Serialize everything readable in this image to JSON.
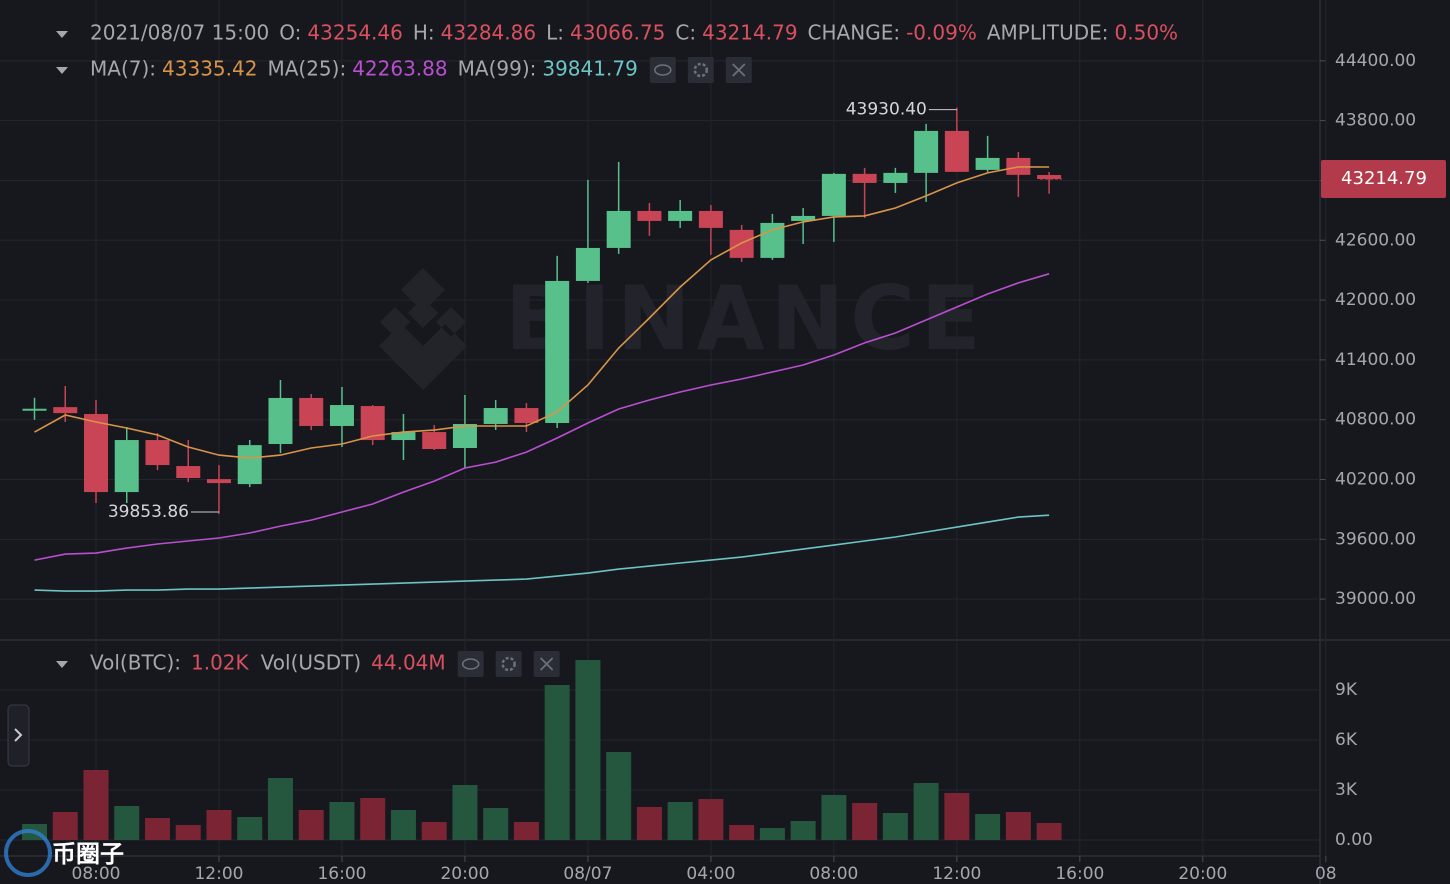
{
  "chart_data": {
    "type": "candlestick",
    "header": {
      "datetime": "2021/08/07 15:00",
      "readouts": [
        {
          "label": "O:",
          "value": "43254.46"
        },
        {
          "label": "H:",
          "value": "43284.86"
        },
        {
          "label": "L:",
          "value": "43066.75"
        },
        {
          "label": "C:",
          "value": "43214.79"
        },
        {
          "label": "CHANGE:",
          "value": "-0.09%"
        },
        {
          "label": "AMPLITUDE:",
          "value": "0.50%"
        }
      ]
    },
    "x": [
      "2021/08/06 06:00",
      "2021/08/06 07:00",
      "2021/08/06 08:00",
      "2021/08/06 09:00",
      "2021/08/06 10:00",
      "2021/08/06 11:00",
      "2021/08/06 12:00",
      "2021/08/06 13:00",
      "2021/08/06 14:00",
      "2021/08/06 15:00",
      "2021/08/06 16:00",
      "2021/08/06 17:00",
      "2021/08/06 18:00",
      "2021/08/06 19:00",
      "2021/08/06 20:00",
      "2021/08/06 21:00",
      "2021/08/06 22:00",
      "2021/08/06 23:00",
      "2021/08/07 00:00",
      "2021/08/07 01:00",
      "2021/08/07 02:00",
      "2021/08/07 03:00",
      "2021/08/07 04:00",
      "2021/08/07 05:00",
      "2021/08/07 06:00",
      "2021/08/07 07:00",
      "2021/08/07 08:00",
      "2021/08/07 09:00",
      "2021/08/07 10:00",
      "2021/08/07 11:00",
      "2021/08/07 12:00",
      "2021/08/07 13:00",
      "2021/08/07 14:00",
      "2021/08/07 15:00"
    ],
    "open": [
      40890,
      40926,
      40857,
      40074,
      40596,
      40335,
      40204,
      40154,
      40556,
      41018,
      40737,
      40937,
      40596,
      40676,
      40516,
      40757,
      40917,
      40767,
      42192,
      42523,
      42894,
      42794,
      42894,
      42704,
      42423,
      42794,
      42844,
      43266,
      43175,
      43276,
      43697,
      43306,
      43426,
      43254.46
    ],
    "high": [
      41020,
      41138,
      40998,
      40726,
      40666,
      40596,
      40345,
      40596,
      41198,
      41058,
      41128,
      40947,
      40857,
      40746,
      41048,
      40998,
      40967,
      42443,
      43206,
      43386,
      42974,
      43004,
      42954,
      42754,
      42864,
      42924,
      43276,
      43326,
      43326,
      43768,
      43930.4,
      43647,
      43486,
      43284.86
    ],
    "low": [
      40800,
      40777,
      39964,
      39964,
      40295,
      40174,
      39853.86,
      40124,
      40465,
      40696,
      40526,
      40546,
      40395,
      40496,
      40315,
      40697,
      40677,
      40717,
      42172,
      42463,
      42644,
      42724,
      42453,
      42383,
      42403,
      42563,
      42583,
      42824,
      43075,
      42985,
      43286,
      43286,
      43035,
      43066.75
    ],
    "close": [
      40910,
      40866,
      40074,
      40596,
      40345,
      40215,
      40164,
      40545,
      41018,
      40737,
      40947,
      40596,
      40676,
      40506,
      40757,
      40917,
      40767,
      42192,
      42523,
      42894,
      42794,
      42894,
      42724,
      42423,
      42774,
      42844,
      43266,
      43175,
      43276,
      43697,
      43286,
      43426,
      43256,
      43214.79
    ],
    "ylim": [
      38590,
      44930
    ],
    "yticks": [
      {
        "value": 39000,
        "label": "39000.00"
      },
      {
        "value": 39600,
        "label": "39600.00"
      },
      {
        "value": 40200,
        "label": "40200.00"
      },
      {
        "value": 40800,
        "label": "40800.00"
      },
      {
        "value": 41400,
        "label": "41400.00"
      },
      {
        "value": 42000,
        "label": "42000.00"
      },
      {
        "value": 42600,
        "label": "42600.00"
      },
      {
        "value": 43200,
        "label": "43200.00"
      },
      {
        "value": 43800,
        "label": "43800.00"
      },
      {
        "value": 44400,
        "label": "44400.00"
      }
    ],
    "xticks": [
      {
        "value": "2021/08/06 08:00",
        "label": "08:00"
      },
      {
        "value": "2021/08/06 12:00",
        "label": "12:00"
      },
      {
        "value": "2021/08/06 16:00",
        "label": "16:00"
      },
      {
        "value": "2021/08/06 20:00",
        "label": "20:00"
      },
      {
        "value": "2021/08/07 00:00",
        "label": "08/07"
      },
      {
        "value": "2021/08/07 04:00",
        "label": "04:00"
      },
      {
        "value": "2021/08/07 08:00",
        "label": "08:00"
      },
      {
        "value": "2021/08/07 12:00",
        "label": "12:00"
      },
      {
        "value": "2021/08/07 16:00",
        "label": "16:00"
      },
      {
        "value": "2021/08/07 20:00",
        "label": "20:00"
      },
      {
        "value": "2021/08/08 00:00",
        "label": "08"
      }
    ],
    "grid": true,
    "up_color": "#58c08a",
    "down_color": "#c94454",
    "series": [
      {
        "name": "MA(7):",
        "value_label": "43335.42",
        "color": "#d9944a",
        "values": [
          40676,
          40847,
          40777,
          40717,
          40646,
          40526,
          40445,
          40415,
          40445,
          40516,
          40556,
          40636,
          40676,
          40696,
          40737,
          40737,
          40737,
          40877,
          41148,
          41519,
          41820,
          42131,
          42403,
          42573,
          42704,
          42784,
          42834,
          42844,
          42924,
          43045,
          43175,
          43276,
          43336,
          43335.42
        ]
      },
      {
        "name": "MA(25):",
        "value_label": "42263.88",
        "color": "#b94fd0",
        "values": [
          39392,
          39452,
          39462,
          39512,
          39553,
          39583,
          39613,
          39663,
          39733,
          39793,
          39874,
          39954,
          40074,
          40184,
          40315,
          40375,
          40475,
          40616,
          40767,
          40907,
          40998,
          41078,
          41148,
          41208,
          41278,
          41349,
          41449,
          41570,
          41670,
          41800,
          41931,
          42061,
          42172,
          42263.88
        ]
      },
      {
        "name": "MA(99):",
        "value_label": "39841.79",
        "color": "#6cc4c4",
        "values": [
          39091,
          39081,
          39081,
          39091,
          39091,
          39101,
          39101,
          39111,
          39121,
          39131,
          39141,
          39151,
          39161,
          39171,
          39181,
          39191,
          39201,
          39231,
          39261,
          39301,
          39331,
          39362,
          39392,
          39422,
          39462,
          39502,
          39542,
          39583,
          39623,
          39673,
          39723,
          39773,
          39823,
          39841.79
        ]
      }
    ],
    "annotations": [
      {
        "value": 43930.4,
        "label": "43930.40"
      },
      {
        "value": 39853.86,
        "label": "39853.86"
      }
    ],
    "last_price": {
      "value": 43214.79,
      "label": "43214.79"
    },
    "volume": {
      "readouts": [
        {
          "label": "Vol(BTC):",
          "value": "1.02K"
        },
        {
          "label": "Vol(USDT)",
          "value": "44.04M"
        }
      ],
      "values": [
        960,
        1680,
        4200,
        2040,
        1320,
        900,
        1800,
        1380,
        3720,
        1800,
        2280,
        2520,
        1800,
        1080,
        3300,
        1920,
        1080,
        9300,
        10800,
        5280,
        1980,
        2280,
        2460,
        900,
        720,
        1140,
        2700,
        2220,
        1620,
        3420,
        2820,
        1560,
        1680,
        1020
      ],
      "up_color": "#24573d",
      "down_color": "#7b2434",
      "ylim": [
        0,
        11520
      ],
      "yticks": [
        {
          "value": 0,
          "label": "0.00"
        },
        {
          "value": 3000,
          "label": "3K"
        },
        {
          "value": 6000,
          "label": "6K"
        },
        {
          "value": 9000,
          "label": "9K"
        }
      ]
    },
    "watermark": "BINANCE",
    "site_mark": "币圈子"
  }
}
